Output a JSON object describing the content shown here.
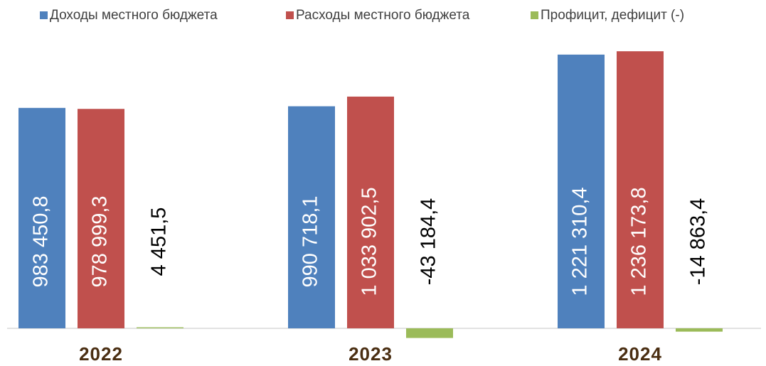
{
  "chart_data": {
    "type": "bar",
    "categories": [
      "2022",
      "2023",
      "2024"
    ],
    "series": [
      {
        "name": "Доходы местного бюджета",
        "color": "#4f81bd",
        "values": [
          983450.8,
          990718.1,
          1221310.4
        ],
        "value_labels": [
          "983 450,8",
          "990 718,1",
          "1 221 310,4"
        ]
      },
      {
        "name": "Расходы местного бюджета",
        "color": "#c0504d",
        "values": [
          978999.3,
          1033902.5,
          1236173.8
        ],
        "value_labels": [
          "978 999,3",
          "1 033 902,5",
          "1 236 173,8"
        ]
      },
      {
        "name": "Профицит, дефицит (-)",
        "color": "#9bbb59",
        "values": [
          4451.5,
          -43184.4,
          -14863.4
        ],
        "value_labels": [
          "4 451,5",
          "-43 184,4",
          "-14 863,4"
        ]
      }
    ],
    "ylim": [
      -100000,
      1300000
    ]
  }
}
